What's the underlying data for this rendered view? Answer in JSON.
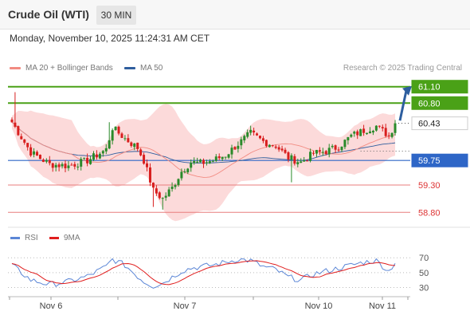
{
  "header": {
    "title": "Crude Oil (WTI)",
    "timeframe": "30 MIN"
  },
  "datetime": "Monday, November 10, 2025 11:24:31 AM CET",
  "legend": {
    "ma20": {
      "label": "MA 20 + Bollinger Bands",
      "color": "#f28b82"
    },
    "ma50": {
      "label": "MA 50",
      "color": "#2f5e9e"
    }
  },
  "copyright": "Research © 2025 Trading Central",
  "rsi_legend": {
    "rsi": {
      "label": "RSI",
      "color": "#5b86d6"
    },
    "ma9": {
      "label": "9MA",
      "color": "#e01e1e"
    }
  },
  "colors": {
    "up": "#2a8a2a",
    "down": "#d81e1e",
    "resistance": "#4aa117",
    "support": "#2e66c7",
    "low_level": "#e87d7d",
    "arrow": "#2d5e9f",
    "band_fill": "#fbd4d4"
  },
  "chart_data": {
    "type": "candlestick",
    "x_axis_labels": [
      "Nov 6",
      "Nov 7",
      "Nov 10",
      "Nov 11"
    ],
    "ylim": [
      58.6,
      61.3
    ],
    "current_price": 60.43,
    "levels": [
      {
        "value": 61.1,
        "label": "61.10",
        "kind": "resistance"
      },
      {
        "value": 60.8,
        "label": "60.80",
        "kind": "resistance"
      },
      {
        "value": 60.43,
        "label": "60.43",
        "kind": "current"
      },
      {
        "value": 59.75,
        "label": "59.75",
        "kind": "pivot"
      },
      {
        "value": 59.3,
        "label": "59.30",
        "kind": "support"
      },
      {
        "value": 58.8,
        "label": "58.80",
        "kind": "support"
      }
    ],
    "forecast_arrow": {
      "from": 60.45,
      "to": 61.1,
      "direction": "up"
    },
    "price_key_points": [
      [
        0,
        60.45
      ],
      [
        6,
        59.9
      ],
      [
        12,
        59.68
      ],
      [
        18,
        59.65
      ],
      [
        24,
        59.75
      ],
      [
        30,
        59.95
      ],
      [
        32,
        60.35
      ],
      [
        36,
        60.15
      ],
      [
        40,
        59.98
      ],
      [
        42,
        59.75
      ],
      [
        45,
        59.2
      ],
      [
        48,
        59.05
      ],
      [
        51,
        59.25
      ],
      [
        54,
        59.55
      ],
      [
        57,
        59.72
      ],
      [
        60,
        59.7
      ],
      [
        64,
        59.75
      ],
      [
        68,
        59.85
      ],
      [
        72,
        60.05
      ],
      [
        76,
        60.25
      ],
      [
        80,
        60.1
      ],
      [
        84,
        60.02
      ],
      [
        88,
        59.8
      ],
      [
        92,
        59.72
      ],
      [
        96,
        59.88
      ],
      [
        100,
        59.92
      ],
      [
        104,
        60.0
      ],
      [
        108,
        60.2
      ],
      [
        112,
        60.3
      ],
      [
        116,
        60.38
      ],
      [
        120,
        60.2
      ],
      [
        122,
        60.43
      ]
    ],
    "rsi": {
      "levels": [
        70,
        50,
        30
      ],
      "key_points": [
        [
          0,
          60
        ],
        [
          6,
          40
        ],
        [
          12,
          34
        ],
        [
          18,
          38
        ],
        [
          24,
          45
        ],
        [
          30,
          58
        ],
        [
          32,
          68
        ],
        [
          36,
          60
        ],
        [
          40,
          45
        ],
        [
          42,
          38
        ],
        [
          45,
          32
        ],
        [
          48,
          36
        ],
        [
          51,
          44
        ],
        [
          54,
          52
        ],
        [
          57,
          56
        ],
        [
          60,
          58
        ],
        [
          64,
          60
        ],
        [
          68,
          64
        ],
        [
          72,
          68
        ],
        [
          76,
          66
        ],
        [
          80,
          58
        ],
        [
          84,
          54
        ],
        [
          88,
          44
        ],
        [
          92,
          40
        ],
        [
          96,
          48
        ],
        [
          100,
          52
        ],
        [
          104,
          56
        ],
        [
          108,
          60
        ],
        [
          112,
          64
        ],
        [
          116,
          66
        ],
        [
          120,
          52
        ],
        [
          122,
          64
        ]
      ]
    }
  }
}
